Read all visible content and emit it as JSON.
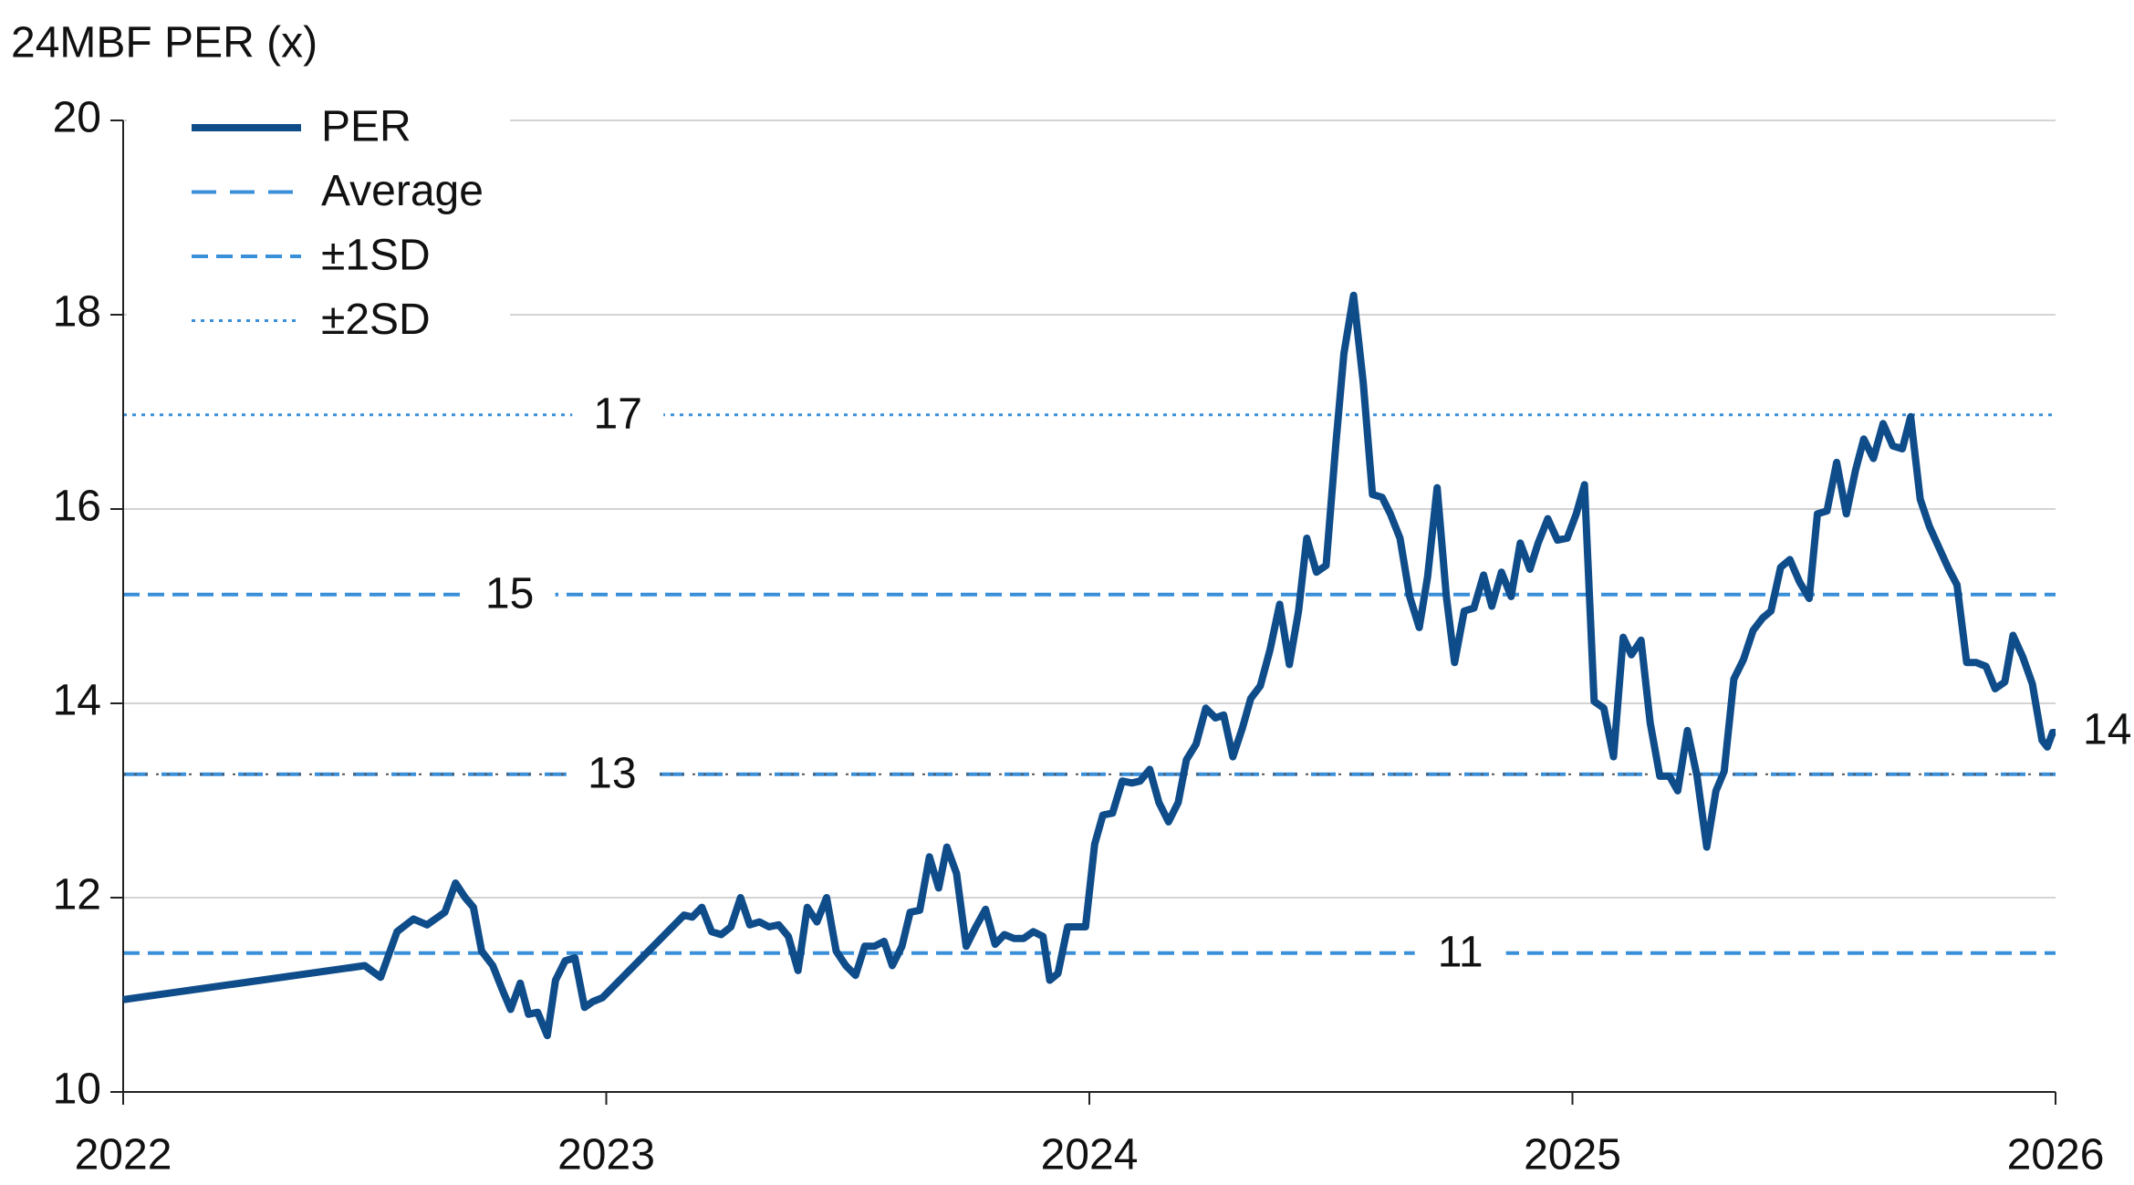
{
  "chart_data": {
    "type": "line",
    "y_axis_label": "24MBF PER (x)",
    "xlim": [
      2022,
      2026
    ],
    "xticks": [
      2022,
      2023,
      2024,
      2025,
      2026
    ],
    "ylim": [
      10,
      20
    ],
    "yticks": [
      10,
      12,
      14,
      16,
      18,
      20
    ],
    "grid": true,
    "legend": "top-left",
    "series": [
      {
        "name": "PER",
        "color": "#0f4c8a",
        "end_label": "14",
        "x": [
          2022.0,
          2022.5,
          2022.533,
          2022.567,
          2022.601,
          2022.629,
          2022.666,
          2022.688,
          2022.708,
          2022.725,
          2022.742,
          2022.765,
          2022.785,
          2022.802,
          2022.822,
          2022.839,
          2022.858,
          2022.878,
          2022.895,
          2022.915,
          2022.935,
          2022.955,
          2022.972,
          2022.992,
          2023.161,
          2023.178,
          2023.198,
          2023.218,
          2023.238,
          2023.258,
          2023.278,
          2023.297,
          2023.317,
          2023.337,
          2023.357,
          2023.377,
          2023.397,
          2023.416,
          2023.436,
          2023.456,
          2023.476,
          2023.496,
          2023.516,
          2023.535,
          2023.555,
          2023.575,
          2023.592,
          2023.612,
          2023.629,
          2023.649,
          2023.669,
          2023.688,
          2023.705,
          2023.725,
          2023.745,
          2023.765,
          2023.785,
          2023.805,
          2023.824,
          2023.844,
          2023.864,
          2023.884,
          2023.904,
          2023.918,
          2023.935,
          2023.955,
          2023.975,
          2023.992,
          2024.011,
          2024.028,
          2024.048,
          2024.068,
          2024.088,
          2024.105,
          2024.125,
          2024.144,
          2024.164,
          2024.184,
          2024.201,
          2024.221,
          2024.241,
          2024.261,
          2024.278,
          2024.297,
          2024.317,
          2024.334,
          2024.354,
          2024.374,
          2024.394,
          2024.414,
          2024.433,
          2024.45,
          2024.47,
          2024.49,
          2024.51,
          2024.527,
          2024.547,
          2024.567,
          2024.586,
          2024.606,
          2024.623,
          2024.643,
          2024.663,
          2024.683,
          2024.7,
          2024.72,
          2024.739,
          2024.756,
          2024.776,
          2024.796,
          2024.816,
          2024.833,
          2024.853,
          2024.873,
          2024.892,
          2024.912,
          2024.929,
          2024.949,
          2024.969,
          2024.989,
          2025.008,
          2025.025,
          2025.045,
          2025.065,
          2025.085,
          2025.105,
          2025.122,
          2025.142,
          2025.161,
          2025.181,
          2025.201,
          2025.218,
          2025.238,
          2025.258,
          2025.278,
          2025.297,
          2025.314,
          2025.334,
          2025.354,
          2025.374,
          2025.394,
          2025.411,
          2025.431,
          2025.45,
          2025.47,
          2025.49,
          2025.507,
          2025.527,
          2025.547,
          2025.567,
          2025.586,
          2025.603,
          2025.623,
          2025.643,
          2025.663,
          2025.683,
          2025.7,
          2025.72,
          2025.739,
          2025.759,
          2025.779,
          2025.796,
          2025.816,
          2025.836,
          2025.856,
          2025.875,
          2025.895,
          2025.912,
          2025.932,
          2025.952,
          2025.972,
          2025.983,
          2025.994,
          2026.0
        ],
        "values": [
          10.95,
          11.3,
          11.18,
          11.65,
          11.78,
          11.72,
          11.85,
          12.15,
          12.0,
          11.9,
          11.45,
          11.3,
          11.05,
          10.85,
          11.12,
          10.8,
          10.82,
          10.58,
          11.15,
          11.35,
          11.38,
          10.87,
          10.93,
          10.97,
          11.82,
          11.8,
          11.9,
          11.65,
          11.62,
          11.7,
          12.0,
          11.72,
          11.75,
          11.7,
          11.72,
          11.6,
          11.25,
          11.9,
          11.75,
          12.0,
          11.45,
          11.3,
          11.2,
          11.5,
          11.5,
          11.55,
          11.3,
          11.5,
          11.85,
          11.87,
          12.42,
          12.1,
          12.52,
          12.25,
          11.5,
          11.7,
          11.88,
          11.52,
          11.62,
          11.58,
          11.58,
          11.65,
          11.6,
          11.15,
          11.22,
          11.7,
          11.7,
          11.7,
          12.55,
          12.85,
          12.87,
          13.2,
          13.18,
          13.2,
          13.32,
          12.98,
          12.78,
          12.98,
          13.42,
          13.58,
          13.95,
          13.85,
          13.88,
          13.45,
          13.75,
          14.05,
          14.18,
          14.55,
          15.02,
          14.4,
          14.95,
          15.7,
          15.35,
          15.42,
          16.65,
          17.6,
          18.2,
          17.3,
          16.15,
          16.12,
          15.95,
          15.7,
          15.1,
          14.78,
          15.3,
          16.22,
          15.1,
          14.42,
          14.95,
          14.98,
          15.32,
          15.0,
          15.35,
          15.1,
          15.65,
          15.38,
          15.65,
          15.9,
          15.68,
          15.7,
          15.95,
          16.25,
          14.02,
          13.95,
          13.45,
          14.68,
          14.5,
          14.65,
          13.8,
          13.25,
          13.25,
          13.1,
          13.72,
          13.25,
          12.52,
          13.1,
          13.3,
          14.25,
          14.45,
          14.75,
          14.88,
          14.95,
          15.4,
          15.48,
          15.25,
          15.08,
          15.95,
          15.98,
          16.48,
          15.95,
          16.4,
          16.72,
          16.52,
          16.88,
          16.65,
          16.62,
          16.95,
          16.1,
          15.82,
          15.6,
          15.38,
          15.22,
          14.42,
          14.42,
          14.38,
          14.15,
          14.22,
          14.7,
          14.48,
          14.2,
          13.62,
          13.55,
          13.7,
          13.7
        ]
      }
    ],
    "reference_lines": [
      {
        "name": "Average",
        "color": "#3a8fd9",
        "values": [
          13.27
        ],
        "value_labels": [
          "13"
        ]
      },
      {
        "name": "±1SD",
        "color": "#3a8fd9",
        "values": [
          15.12,
          11.43
        ],
        "value_labels": [
          "15",
          "11"
        ]
      },
      {
        "name": "±2SD",
        "color": "#3a8fd9",
        "values": [
          16.97
        ],
        "value_labels": [
          "17"
        ]
      }
    ]
  }
}
